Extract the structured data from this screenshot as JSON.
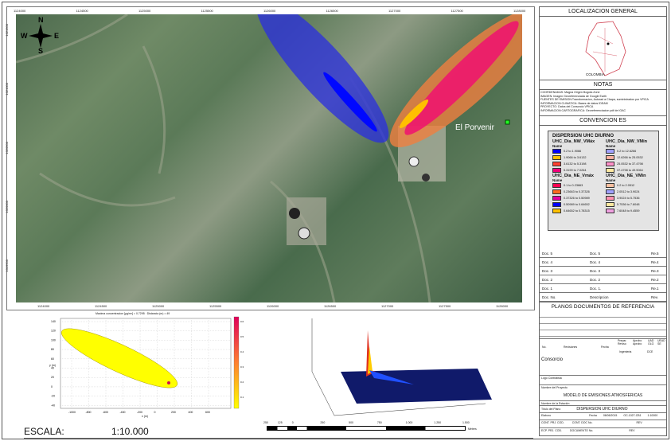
{
  "map": {
    "top_ticks": [
      "1124000",
      "1124500",
      "1125000",
      "1125500",
      "1126000",
      "1126500",
      "1127000",
      "1127500",
      "1128000"
    ],
    "bottom_ticks": [
      "1124000",
      "1124500",
      "1125000",
      "1125500",
      "1126000",
      "1126500",
      "1127000",
      "1127500",
      "1128000"
    ],
    "left_ticks": [
      "1021500",
      "1021000",
      "1020500",
      "1020000",
      "1019500"
    ],
    "place_label": "El Porvenir",
    "compass": {
      "n": "N",
      "s": "S",
      "e": "E",
      "w": "W"
    },
    "colors": {
      "nw_plume": "#2a2ee0",
      "ne_plume": "#f07a3a",
      "ne_core": "#e8106a"
    }
  },
  "panel": {
    "localizacion": "LOCALIZACION GENERAL",
    "country": "COLOMBIA",
    "notas": "NOTAS",
    "notes": [
      "COORDENADAS: Magna Origen Bogota Zone",
      "IMAGEN: Imagen Georeferenciada de Google Earth",
      "FUENTES DE EMISION:Transformacion, Autorad a Chapa, suministrados por VPICA",
      "INFORMACION CLIMATICA: Bases de datos IDEAM",
      "PROYECTO: Datos del Consorcio VPICA",
      "INFORMACION CARTOGRAFICA: Georeferenciacion pdf de IGAC"
    ],
    "convenciones": "CONVENCION ES"
  },
  "legend": {
    "title": "DISPERSION UHC DIURNO",
    "groups": [
      {
        "name": "UHC_Dia_NW_VMáx",
        "sub": "Name",
        "items": [
          {
            "label": "0.2 to 1.9066",
            "color": "#0000ff"
          },
          {
            "label": "1.9066 to 3.6132",
            "color": "#ffc000"
          },
          {
            "label": "3.6132 to 5.3198",
            "color": "#ff4030"
          },
          {
            "label": "5.3199 to 7.0264",
            "color": "#f0007a"
          }
        ]
      },
      {
        "name": "UHC_Dia_NW_VMin",
        "sub": "Name",
        "items": [
          {
            "label": "0.2 to 12.6266",
            "color": "#a0a0ff"
          },
          {
            "label": "12.6266 to 25.0532",
            "color": "#ffb0a0"
          },
          {
            "label": "25.0532 to 37.4798",
            "color": "#ff90c8"
          },
          {
            "label": "37.4798 to 49.9064",
            "color": "#ffe8a0"
          }
        ]
      },
      {
        "name": "UHC_Dia_NE_Vmáx",
        "sub": "Name",
        "items": [
          {
            "label": "0.1 to 0.23663",
            "color": "#ff0050"
          },
          {
            "label": "0.23663 to 0.37326",
            "color": "#ff6a20"
          },
          {
            "label": "0.37326 to 0.50989",
            "color": "#e000a0"
          },
          {
            "label": "0.50989 to 0.64652",
            "color": "#0000ff"
          },
          {
            "label": "0.64652 to 0.78315",
            "color": "#ffc000"
          }
        ]
      },
      {
        "name": "UHC_Dia_NE_VMin",
        "sub": "Name",
        "items": [
          {
            "label": "0.2 to 2.0512",
            "color": "#ffc0a0"
          },
          {
            "label": "2.0512 to 3.9024",
            "color": "#a0a0ff"
          },
          {
            "label": "3.9024 to 5.7536",
            "color": "#ff90b0"
          },
          {
            "label": "5.7536 to 7.6048",
            "color": "#ffe8a0"
          },
          {
            "label": "7.6048 to 9.4559",
            "color": "#f0a0e0"
          }
        ]
      }
    ]
  },
  "docs": [
    {
      "doc": "Doc. 5",
      "desc": "Doc. 5",
      "rev": "Re.5"
    },
    {
      "doc": "Doc. 4",
      "desc": "Doc. 4",
      "rev": "Re.4"
    },
    {
      "doc": "Doc. 3",
      "desc": "Doc. 3",
      "rev": "Re.3"
    },
    {
      "doc": "Doc. 2",
      "desc": "Doc. 2",
      "rev": "Re.2"
    },
    {
      "doc": "Doc. 1",
      "desc": "Doc. 1.",
      "rev": "Re.1"
    },
    {
      "doc": "Doc. No.",
      "desc": "Descripcion",
      "rev": "Rev."
    }
  ],
  "titleblock": {
    "planos": "PLANOS DOCUMENTOS DE REFERENCIA",
    "no": "No.",
    "revisiones": "Revisiones",
    "fecha": "Fecha",
    "c1": "Prepar. Reviso",
    "c2": "Aprobo Aprobo",
    "c3": "UAD OLG",
    "c4": "UEAD SE",
    "ingenieria": "Ingenieria",
    "dce": "DCE",
    "consorcio": "Consorcio",
    "logo": "Logo Contratista",
    "nombre_label": "Nombre del Proyecto",
    "proyecto": "MODELO DE EMISIONES ATMOSFERICAS",
    "estacion": "Nombre de la Estación",
    "titulo_label": "Título del Plano",
    "titulo": "DISPERSION UHC DIURNO",
    "elaboro": "Elaboro",
    "fecha_label": "Fecha",
    "fecha_val": "06/06/2015",
    "contrato": "Contrato/Orden No.",
    "contrato_val": "OC-1027-CB1",
    "escala_label": "Escala",
    "escala_val": "1:10000",
    "cont1": "CONT. PRJ. COD.",
    "cont2": "CONT. DOC No.",
    "rev1": "REV",
    "ecp1": "ECP. PRJ. COD.",
    "ecp2": "DOCUMENTO No.",
    "rev2": "REV"
  },
  "scale": {
    "label": "ESCALA:",
    "value": "1:10.000",
    "ticks": [
      "250",
      "125",
      "0",
      "250",
      "500",
      "750",
      "1.000",
      "1.250",
      "1.500"
    ],
    "unit": "Meters"
  },
  "plot2d": {
    "title": "Maxima concentracion [µg/m³] = 0.7295 · Distancia (m) = 49",
    "xlabel": "x (m)",
    "ylabel": "y (m)",
    "xticks": [
      "-1000",
      "-800",
      "-600",
      "-400",
      "-200",
      "0",
      "200",
      "400",
      "600"
    ],
    "yticks": [
      "140",
      "120",
      "100",
      "80",
      "60",
      "40",
      "20",
      "0",
      "-20",
      "-40"
    ],
    "cbar": [
      "0.6",
      "0.5",
      "0.4",
      "0.3",
      "0.2",
      "0.1"
    ]
  }
}
